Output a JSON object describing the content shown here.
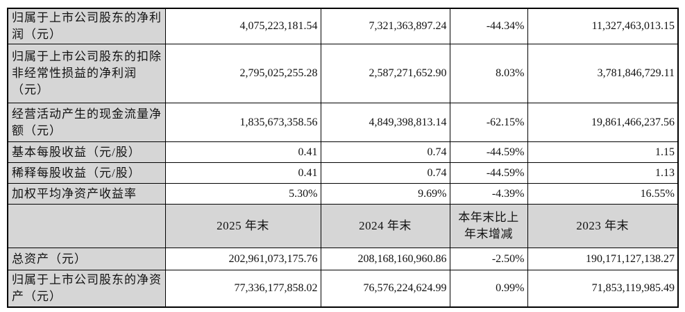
{
  "colors": {
    "shading": "#d6d6d6",
    "border": "#000000",
    "text": "#111111"
  },
  "table": {
    "rows": [
      {
        "label": "归属于上市公司股东的净利\n润（元）",
        "values": [
          "4,075,223,181.54",
          "7,321,363,897.24",
          "-44.34%",
          "11,327,463,013.15"
        ]
      },
      {
        "label": "归属于上市公司股东的扣除\n非经常性损益的净利润\n（元）",
        "values": [
          "2,795,025,255.28",
          "2,587,271,652.90",
          "8.03%",
          "3,781,846,729.11"
        ]
      },
      {
        "label": "经营活动产生的现金流量净\n额（元）",
        "values": [
          "1,835,673,358.56",
          "4,849,398,813.14",
          "-62.15%",
          "19,861,466,237.56"
        ]
      },
      {
        "label": "基本每股收益（元/股）",
        "values": [
          "0.41",
          "0.74",
          "-44.59%",
          "1.15"
        ]
      },
      {
        "label": "稀释每股收益（元/股）",
        "values": [
          "0.41",
          "0.74",
          "-44.59%",
          "1.13"
        ]
      },
      {
        "label": "加权平均净资产收益率",
        "values": [
          "5.30%",
          "9.69%",
          "-4.39%",
          "16.55%"
        ]
      },
      {
        "label": "",
        "values": [
          "2025 年末",
          "2024 年末",
          "本年末比上\n年末增减",
          "2023 年末"
        ]
      },
      {
        "label": "总资产（元）",
        "values": [
          "202,961,073,175.76",
          "208,168,160,960.86",
          "-2.50%",
          "190,171,127,138.27"
        ]
      },
      {
        "label": "归属于上市公司股东的净资\n产（元）",
        "values": [
          "77,336,177,858.02",
          "76,576,224,624.99",
          "0.99%",
          "71,853,119,985.49"
        ]
      }
    ]
  }
}
